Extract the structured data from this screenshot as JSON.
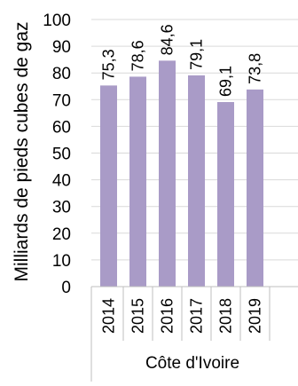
{
  "chart_data": {
    "type": "bar",
    "categories": [
      "2014",
      "2015",
      "2016",
      "2017",
      "2018",
      "2019"
    ],
    "values": [
      75.3,
      78.6,
      84.6,
      79.1,
      69.1,
      73.8
    ],
    "value_labels": [
      "75,3",
      "78,6",
      "84,6",
      "79,1",
      "69,1",
      "73,8"
    ],
    "group_label": "Côte d'Ivoire",
    "title": "",
    "xlabel": "",
    "ylabel": "Milliards de pieds cubes de gaz",
    "ylim": [
      0,
      100
    ],
    "yticks": [
      0,
      10,
      20,
      30,
      40,
      50,
      60,
      70,
      80,
      90,
      100
    ],
    "grid": true,
    "legend": "none",
    "bar_color": "#a99bc7",
    "grid_color": "#d9d9d9",
    "axis_color": "#bfbfbf",
    "text_color": "#000000"
  }
}
